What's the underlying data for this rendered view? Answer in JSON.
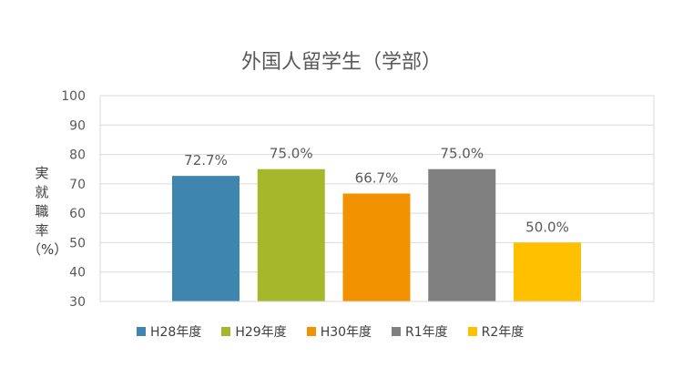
{
  "chart_data": {
    "type": "bar",
    "title": "外国人留学生（学部）",
    "ylabel": "実\n就\n職\n率\n（%）",
    "ylim": [
      30,
      100
    ],
    "yticks": [
      30,
      40,
      50,
      60,
      70,
      80,
      90,
      100
    ],
    "grid": true,
    "legend_position": "bottom",
    "categories": [
      "H28年度",
      "H29年度",
      "H30年度",
      "R1年度",
      "R2年度"
    ],
    "values": [
      72.7,
      75.0,
      66.7,
      75.0,
      50.0
    ],
    "data_labels": [
      "72.7%",
      "75.0%",
      "66.7%",
      "75.0%",
      "50.0%"
    ],
    "colors": [
      "#3E86AF",
      "#A5B82C",
      "#F39200",
      "#808080",
      "#FFC000"
    ]
  }
}
